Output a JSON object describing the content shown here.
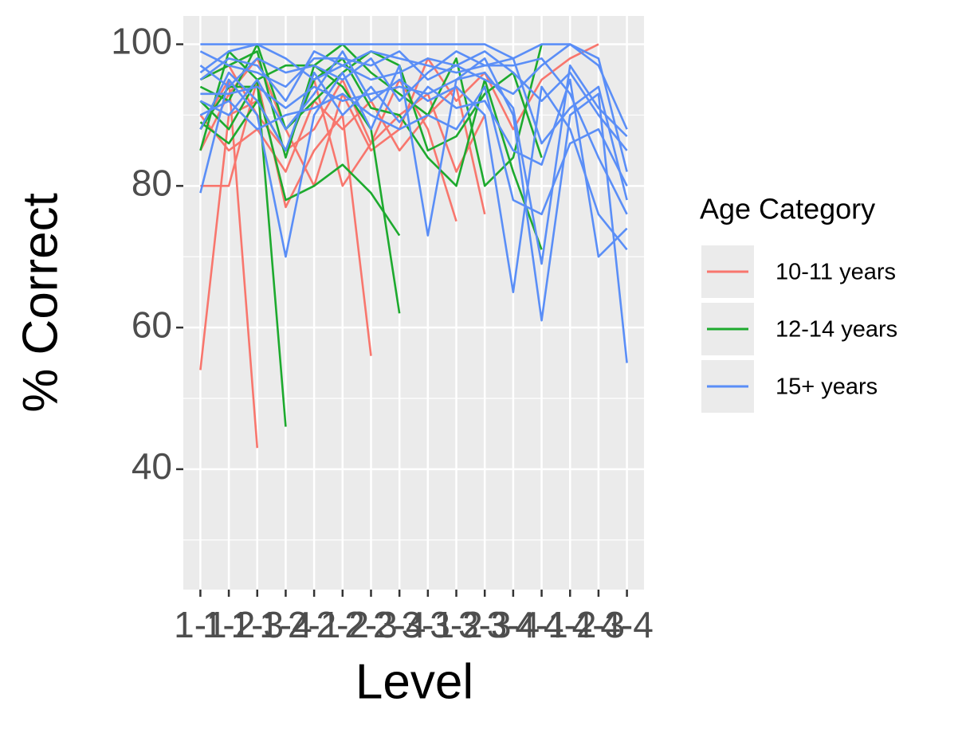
{
  "chart_data": {
    "type": "line",
    "x_label": "Level",
    "y_label": "% Correct",
    "legend_title": "Age Category",
    "categories": [
      "1-1",
      "1-2",
      "1-3",
      "1-4",
      "2-1",
      "2-2",
      "2-3",
      "2-4",
      "3-1",
      "3-2",
      "3-3",
      "3-4",
      "4-1",
      "4-2",
      "4-3",
      "4-4"
    ],
    "ylim": [
      23,
      104
    ],
    "yticks": [
      40,
      60,
      80,
      100
    ],
    "yminor": [
      30,
      50,
      70,
      90
    ],
    "grid": true,
    "legend": "right",
    "series": [
      {
        "name": "10-11 years",
        "color": "#f8766d",
        "participants": [
          [
            54,
            90,
            92,
            85,
            88,
            95,
            86,
            90,
            93,
            82,
            90,
            null,
            null,
            null,
            null,
            null
          ],
          [
            88,
            95,
            43,
            null,
            null,
            null,
            null,
            null,
            null,
            null,
            null,
            null,
            null,
            null,
            null,
            null
          ],
          [
            80,
            80,
            95,
            77,
            85,
            90,
            56,
            null,
            null,
            null,
            null,
            null,
            null,
            null,
            null,
            null
          ],
          [
            90,
            85,
            88,
            82,
            92,
            88,
            92,
            85,
            90,
            94,
            76,
            null,
            null,
            null,
            null,
            null
          ],
          [
            95,
            97,
            90,
            85,
            95,
            80,
            86,
            95,
            88,
            75,
            null,
            null,
            null,
            null,
            null,
            null
          ],
          [
            85,
            93,
            98,
            88,
            80,
            93,
            85,
            88,
            98,
            92,
            96,
            88,
            95,
            98,
            100,
            null
          ]
        ]
      },
      {
        "name": "12-14 years",
        "color": "#1daa2e",
        "participants": [
          [
            92,
            88,
            95,
            46,
            null,
            null,
            null,
            null,
            null,
            null,
            null,
            null,
            null,
            null,
            null,
            null
          ],
          [
            88,
            94,
            94,
            78,
            80,
            83,
            79,
            73,
            null,
            null,
            null,
            null,
            null,
            null,
            null,
            null
          ],
          [
            95,
            97,
            99,
            84,
            97,
            94,
            88,
            62,
            null,
            null,
            null,
            null,
            null,
            null,
            null,
            null
          ],
          [
            89,
            86,
            92,
            85,
            95,
            98,
            91,
            90,
            84,
            80,
            95,
            82,
            71,
            null,
            null,
            null
          ],
          [
            85,
            99,
            95,
            97,
            97,
            100,
            96,
            93,
            90,
            98,
            80,
            84,
            100,
            null,
            null,
            null
          ],
          [
            94,
            92,
            100,
            88,
            92,
            96,
            99,
            97,
            85,
            87,
            93,
            96,
            84,
            null,
            null,
            null
          ]
        ]
      },
      {
        "name": "15+ years",
        "color": "#5a8ef7",
        "participants": [
          [
            79,
            95,
            90,
            70,
            90,
            96,
            88,
            97,
            73,
            95,
            98,
            90,
            61,
            90,
            93,
            55
          ],
          [
            100,
            100,
            100,
            100,
            100,
            100,
            100,
            100,
            100,
            100,
            100,
            98,
            100,
            100,
            97,
            88
          ],
          [
            95,
            98,
            97,
            92,
            99,
            97,
            95,
            96,
            98,
            97,
            95,
            93,
            97,
            100,
            98,
            82
          ],
          [
            92,
            90,
            95,
            88,
            93,
            99,
            92,
            95,
            92,
            94,
            90,
            65,
            94,
            88,
            76,
            71
          ],
          [
            97,
            94,
            98,
            96,
            97,
            95,
            98,
            92,
            96,
            99,
            97,
            98,
            86,
            91,
            94,
            78
          ],
          [
            88,
            96,
            92,
            85,
            96,
            90,
            94,
            89,
            94,
            91,
            92,
            85,
            83,
            95,
            70,
            74
          ],
          [
            99,
            97,
            96,
            94,
            98,
            98,
            97,
            99,
            95,
            97,
            99,
            96,
            92,
            96,
            90,
            85
          ],
          [
            90,
            92,
            88,
            90,
            91,
            93,
            90,
            88,
            90,
            88,
            94,
            78,
            76,
            86,
            88,
            80
          ],
          [
            96,
            99,
            100,
            98,
            95,
            97,
            99,
            98,
            97,
            96,
            97,
            97,
            98,
            93,
            84,
            76
          ],
          [
            93,
            93,
            94,
            91,
            94,
            92,
            93,
            94,
            93,
            95,
            96,
            91,
            69,
            97,
            91,
            87
          ]
        ]
      }
    ]
  }
}
